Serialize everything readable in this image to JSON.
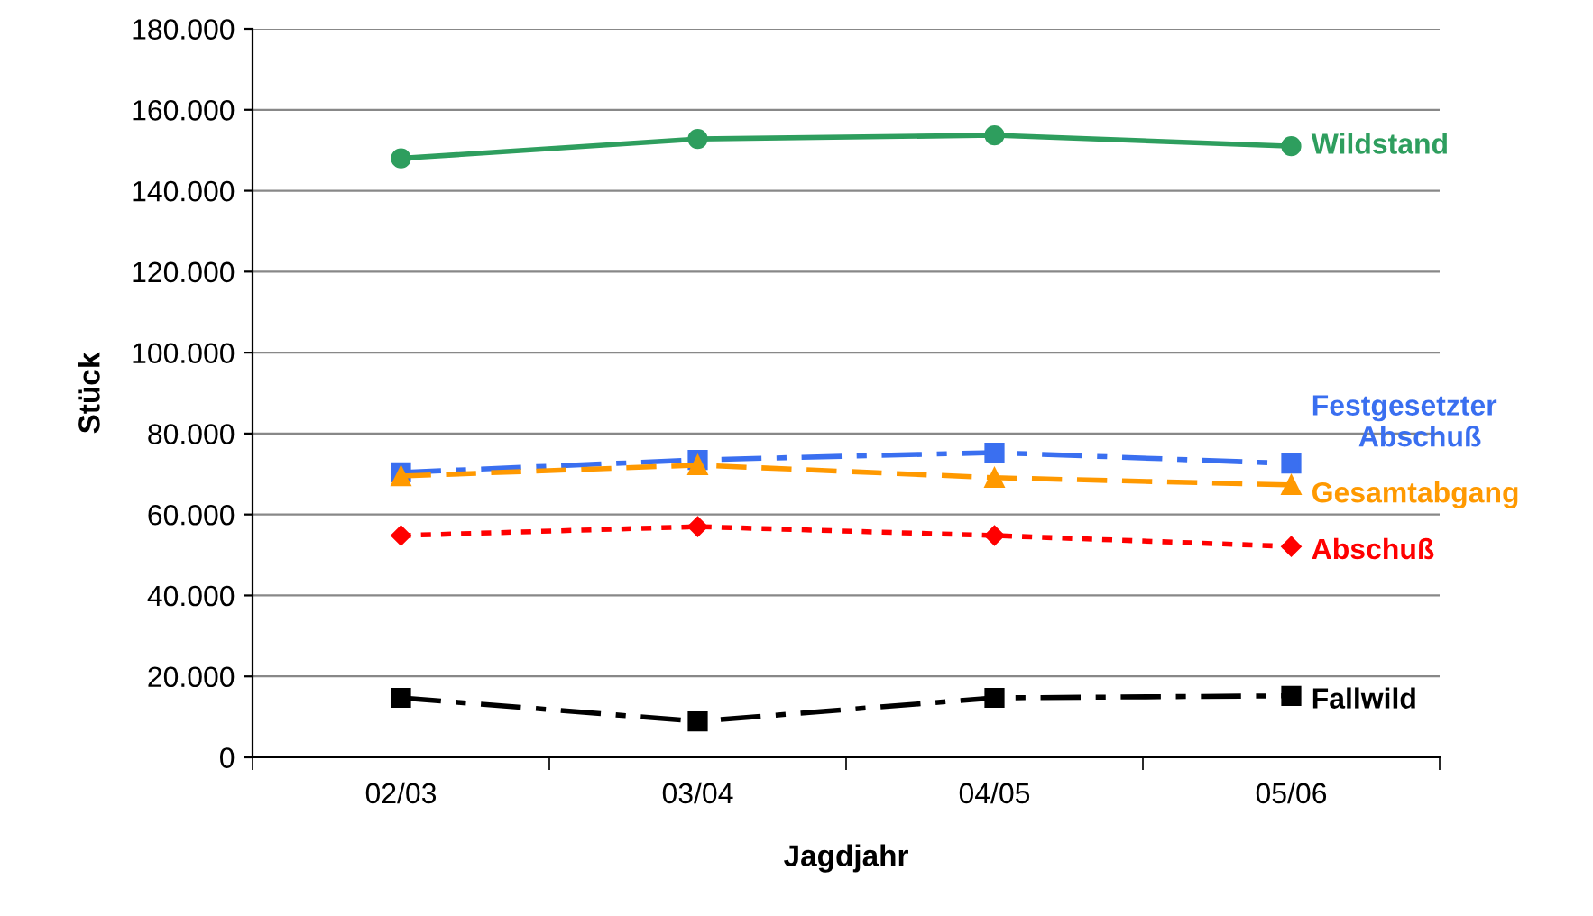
{
  "chart_data": {
    "type": "line",
    "xlabel": "Jagdjahr",
    "ylabel": "Stück",
    "categories": [
      "02/03",
      "03/04",
      "04/05",
      "05/06"
    ],
    "ylim": [
      0,
      180000
    ],
    "yticks": [
      0,
      {
        "value": 20000,
        "label": "20.000"
      },
      {
        "value": 40000,
        "label": "40.000"
      },
      {
        "value": 60000,
        "label": "60.000"
      },
      {
        "value": 80000,
        "label": "80.000"
      },
      {
        "value": 100000,
        "label": "100.000"
      },
      {
        "value": 120000,
        "label": "120.000"
      },
      {
        "value": 140000,
        "label": "140.000"
      },
      {
        "value": 160000,
        "label": "160.000"
      },
      {
        "value": 180000,
        "label": "180.000"
      }
    ],
    "grid": "y",
    "legend": false,
    "series": [
      {
        "name": "Wildstand",
        "color": "#2e9e5e",
        "marker": "circle",
        "line_style": "solid",
        "values": [
          148000,
          152800,
          153700,
          151000
        ]
      },
      {
        "name": "Festgesetzter Abschuß",
        "color": "#3a6ff0",
        "marker": "square",
        "line_style": "dashdot",
        "values": [
          70400,
          73500,
          75300,
          72600
        ]
      },
      {
        "name": "Gesamtabgang",
        "color": "#ff9900",
        "marker": "triangle",
        "line_style": "dashed",
        "values": [
          69500,
          72200,
          69100,
          67300
        ]
      },
      {
        "name": "Abschuß",
        "color": "#ff0000",
        "marker": "diamond",
        "line_style": "dotted",
        "values": [
          54800,
          57000,
          54800,
          52100
        ]
      },
      {
        "name": "Fallwild",
        "color": "#000000",
        "marker": "square",
        "line_style": "dashdot",
        "values": [
          14700,
          8900,
          14700,
          15200
        ]
      }
    ]
  }
}
